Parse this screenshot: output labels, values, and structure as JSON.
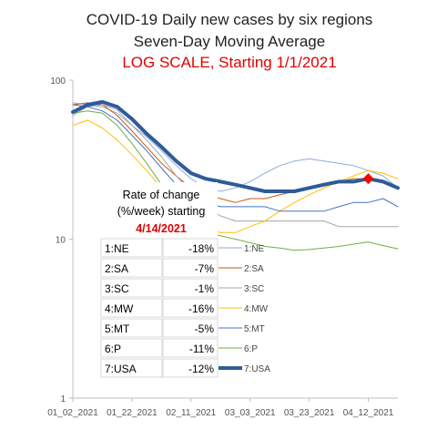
{
  "chart_data": {
    "type": "line",
    "title": "COVID-19 Daily new cases by six regions",
    "subtitle": "Seven-Day Moving Average",
    "subtitle2": "LOG SCALE, Starting 1/1/2021",
    "y_scale": "log",
    "ylim": [
      1,
      100
    ],
    "y_ticks": [
      "100",
      "10",
      "1"
    ],
    "x_ticks": [
      "01_02_2021",
      "01_22_2021",
      "02_11_2021",
      "03_03_2021",
      "03_23_2021",
      "04_12_2021"
    ],
    "x": [
      "2021-01-02",
      "2021-01-07",
      "2021-01-12",
      "2021-01-17",
      "2021-01-22",
      "2021-01-27",
      "2021-02-01",
      "2021-02-06",
      "2021-02-11",
      "2021-02-16",
      "2021-02-21",
      "2021-02-26",
      "2021-03-03",
      "2021-03-08",
      "2021-03-13",
      "2021-03-18",
      "2021-03-23",
      "2021-03-28",
      "2021-04-02",
      "2021-04-07",
      "2021-04-12",
      "2021-04-17",
      "2021-04-22"
    ],
    "series": [
      {
        "name": "1:NE",
        "color": "#8faadc",
        "width": 1,
        "values": [
          72,
          70,
          68,
          62,
          52,
          44,
          36,
          29,
          24,
          21,
          20,
          21,
          23,
          26,
          29,
          31,
          32,
          31,
          30,
          29,
          27,
          25,
          21
        ]
      },
      {
        "name": "2:SA",
        "color": "#c55a11",
        "width": 1,
        "values": [
          70,
          72,
          70,
          60,
          48,
          38,
          30,
          25,
          21,
          19,
          18,
          17,
          18,
          18,
          19,
          20,
          21,
          22,
          23,
          24,
          24,
          23,
          21
        ]
      },
      {
        "name": "3:SC",
        "color": "#a5a5a5",
        "width": 1,
        "values": [
          60,
          68,
          70,
          65,
          52,
          42,
          33,
          25,
          20,
          16,
          14,
          13,
          13,
          13,
          13,
          13,
          13,
          13,
          12,
          12,
          12,
          12,
          12
        ]
      },
      {
        "name": "4:MW",
        "color": "#ffc000",
        "width": 1,
        "values": [
          52,
          56,
          50,
          42,
          34,
          27,
          21,
          16,
          13,
          11.5,
          11,
          11,
          12,
          13,
          15,
          17,
          19,
          21,
          23,
          25,
          27,
          26,
          24
        ]
      },
      {
        "name": "5:MT",
        "color": "#4472c4",
        "width": 1,
        "values": [
          70,
          68,
          64,
          56,
          45,
          36,
          28,
          22,
          18,
          17,
          16,
          16,
          16,
          16,
          15,
          15,
          15,
          15,
          16,
          17,
          17,
          18,
          16
        ]
      },
      {
        "name": "6:P",
        "color": "#70ad47",
        "width": 1,
        "values": [
          62,
          64,
          62,
          52,
          40,
          30,
          22,
          16,
          12.5,
          11,
          10.5,
          10,
          9.5,
          9,
          8.8,
          8.5,
          8.6,
          8.8,
          9,
          9.3,
          9.6,
          9.1,
          8.7
        ]
      },
      {
        "name": "7:USA",
        "color": "#2e5b9a",
        "width": 4,
        "values": [
          63,
          70,
          73,
          68,
          57,
          46,
          38,
          31,
          26,
          24,
          23,
          22,
          21,
          20,
          20,
          20,
          21,
          22,
          23,
          23,
          24,
          23,
          21
        ]
      }
    ],
    "highlight": {
      "series": "7:USA",
      "x": "2021-04-12",
      "value": 24,
      "color": "#ff0000"
    },
    "grid": false,
    "legend": "right"
  },
  "table": {
    "header_line1": "Rate of change",
    "header_line2": "(%/week) starting",
    "header_date": "4/14/2021",
    "rows": [
      {
        "region": "1:NE",
        "rate": "-18%"
      },
      {
        "region": "2:SA",
        "rate": "-7%"
      },
      {
        "region": "3:SC",
        "rate": "-1%"
      },
      {
        "region": "4:MW",
        "rate": "-16%"
      },
      {
        "region": "5:MT",
        "rate": "-5%"
      },
      {
        "region": "6:P",
        "rate": "-11%"
      },
      {
        "region": "7:USA",
        "rate": "-12%"
      }
    ]
  }
}
